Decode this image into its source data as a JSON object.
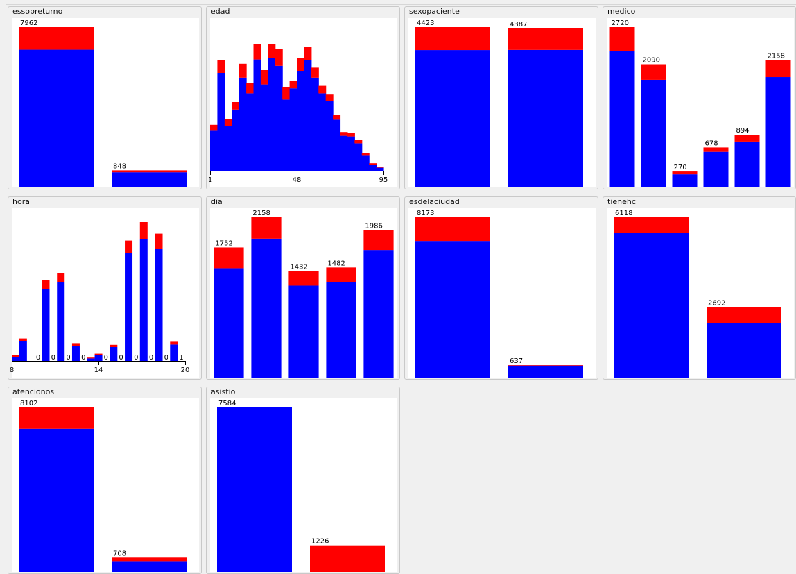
{
  "colors": {
    "class_a": "#0000ff",
    "class_b": "#ff0000",
    "background": "#f0f0f0",
    "plot_bg": "#ffffff"
  },
  "chart_data": [
    {
      "id": "essobreturno",
      "type": "bar",
      "title": "essobreturno",
      "stacked": true,
      "ymax": 7962,
      "bars": [
        {
          "total": 7962,
          "label": "7962",
          "blue": 6840,
          "red": 1122
        },
        {
          "total": 848,
          "label": "848",
          "blue": 752,
          "red": 96
        }
      ]
    },
    {
      "id": "edad",
      "type": "bar",
      "title": "edad",
      "stacked": true,
      "histogram": true,
      "ymax": 10,
      "x_ticks": [
        "1",
        "48",
        "95"
      ],
      "bins": [
        {
          "blue": 2.88,
          "red": 0.43
        },
        {
          "blue": 7.05,
          "red": 0.94
        },
        {
          "blue": 3.24,
          "red": 0.5
        },
        {
          "blue": 4.41,
          "red": 0.54
        },
        {
          "blue": 6.71,
          "red": 1.0
        },
        {
          "blue": 5.58,
          "red": 0.72
        },
        {
          "blue": 8.02,
          "red": 1.08
        },
        {
          "blue": 6.22,
          "red": 1.03
        },
        {
          "blue": 8.1,
          "red": 1.03
        },
        {
          "blue": 7.56,
          "red": 1.21
        },
        {
          "blue": 5.13,
          "red": 0.9
        },
        {
          "blue": 5.94,
          "red": 0.54
        },
        {
          "blue": 7.2,
          "red": 0.9
        },
        {
          "blue": 7.97,
          "red": 0.94
        },
        {
          "blue": 6.71,
          "red": 0.72
        },
        {
          "blue": 5.58,
          "red": 0.54
        },
        {
          "blue": 5.04,
          "red": 0.45
        },
        {
          "blue": 3.68,
          "red": 0.36
        },
        {
          "blue": 2.52,
          "red": 0.27
        },
        {
          "blue": 2.47,
          "red": 0.27
        },
        {
          "blue": 1.98,
          "red": 0.22
        },
        {
          "blue": 1.08,
          "red": 0.18
        },
        {
          "blue": 0.4,
          "red": 0.14
        },
        {
          "blue": 0.22,
          "red": 0.05
        }
      ]
    },
    {
      "id": "sexopaciente",
      "type": "bar",
      "title": "sexopaciente",
      "stacked": true,
      "ymax": 4423,
      "bars": [
        {
          "total": 4423,
          "label": "4423",
          "blue": 3790,
          "red": 633
        },
        {
          "total": 4387,
          "label": "4387",
          "blue": 3794,
          "red": 593
        }
      ]
    },
    {
      "id": "medico",
      "type": "bar",
      "title": "medico",
      "stacked": true,
      "ymax": 2720,
      "bars": [
        {
          "total": 2720,
          "label": "2720",
          "blue": 2308,
          "red": 412
        },
        {
          "total": 2090,
          "label": "2090",
          "blue": 1826,
          "red": 264
        },
        {
          "total": 270,
          "label": "270",
          "blue": 222,
          "red": 48
        },
        {
          "total": 678,
          "label": "678",
          "blue": 604,
          "red": 74
        },
        {
          "total": 894,
          "label": "894",
          "blue": 778,
          "red": 116
        },
        {
          "total": 2158,
          "label": "2158",
          "blue": 1872,
          "red": 286
        }
      ]
    },
    {
      "id": "hora",
      "type": "bar",
      "title": "hora",
      "stacked": true,
      "histogram": true,
      "ymax": 1000,
      "x_ticks": [
        "8",
        "14",
        "20"
      ],
      "bins": [
        {
          "blue": 28,
          "red": 12,
          "label": ""
        },
        {
          "blue": 140,
          "red": 22,
          "label": ""
        },
        {
          "blue": 0,
          "red": 0,
          "label": ""
        },
        {
          "blue": 0,
          "red": 0,
          "label": "0"
        },
        {
          "blue": 520,
          "red": 62,
          "label": ""
        },
        {
          "blue": 0,
          "red": 0,
          "label": "0"
        },
        {
          "blue": 565,
          "red": 68,
          "label": ""
        },
        {
          "blue": 0,
          "red": 0,
          "label": "0"
        },
        {
          "blue": 110,
          "red": 18,
          "label": ""
        },
        {
          "blue": 0,
          "red": 0,
          "label": "0"
        },
        {
          "blue": 18,
          "red": 6,
          "label": ""
        },
        {
          "blue": 42,
          "red": 10,
          "label": ""
        },
        {
          "blue": 0,
          "red": 0,
          "label": "0"
        },
        {
          "blue": 100,
          "red": 16,
          "label": ""
        },
        {
          "blue": 0,
          "red": 0,
          "label": "0"
        },
        {
          "blue": 775,
          "red": 92,
          "label": ""
        },
        {
          "blue": 0,
          "red": 0,
          "label": "0"
        },
        {
          "blue": 875,
          "red": 125,
          "label": ""
        },
        {
          "blue": 0,
          "red": 0,
          "label": "0"
        },
        {
          "blue": 805,
          "red": 112,
          "label": ""
        },
        {
          "blue": 0,
          "red": 0,
          "label": "0"
        },
        {
          "blue": 118,
          "red": 20,
          "label": ""
        },
        {
          "blue": 0,
          "red": 0,
          "label": "1"
        }
      ]
    },
    {
      "id": "dia",
      "type": "bar",
      "title": "dia",
      "stacked": true,
      "ymax": 2158,
      "bars": [
        {
          "total": 1752,
          "label": "1752",
          "blue": 1472,
          "red": 280
        },
        {
          "total": 2158,
          "label": "2158",
          "blue": 1870,
          "red": 288
        },
        {
          "total": 1432,
          "label": "1432",
          "blue": 1238,
          "red": 194
        },
        {
          "total": 1482,
          "label": "1482",
          "blue": 1282,
          "red": 200
        },
        {
          "total": 1986,
          "label": "1986",
          "blue": 1718,
          "red": 268
        }
      ]
    },
    {
      "id": "esdelaciudad",
      "type": "bar",
      "title": "esdelaciudad",
      "stacked": true,
      "ymax": 8173,
      "bars": [
        {
          "total": 8173,
          "label": "8173",
          "blue": 6966,
          "red": 1207
        },
        {
          "total": 637,
          "label": "637",
          "blue": 612,
          "red": 25
        }
      ]
    },
    {
      "id": "tienehc",
      "type": "bar",
      "title": "tienehc",
      "stacked": true,
      "ymax": 6118,
      "bars": [
        {
          "total": 6118,
          "label": "6118",
          "blue": 5528,
          "red": 590
        },
        {
          "total": 2692,
          "label": "2692",
          "blue": 2066,
          "red": 626
        }
      ]
    },
    {
      "id": "atencionos",
      "type": "bar",
      "title": "atencionos",
      "stacked": true,
      "ymax": 8102,
      "bars": [
        {
          "total": 8102,
          "label": "8102",
          "blue": 7050,
          "red": 1052
        },
        {
          "total": 708,
          "label": "708",
          "blue": 534,
          "red": 174
        }
      ]
    },
    {
      "id": "asistio",
      "type": "bar",
      "title": "asistio",
      "stacked": true,
      "ymax": 7584,
      "bars": [
        {
          "total": 7584,
          "label": "7584",
          "blue": 7584,
          "red": 0
        },
        {
          "total": 1226,
          "label": "1226",
          "blue": 0,
          "red": 1226
        }
      ]
    }
  ]
}
